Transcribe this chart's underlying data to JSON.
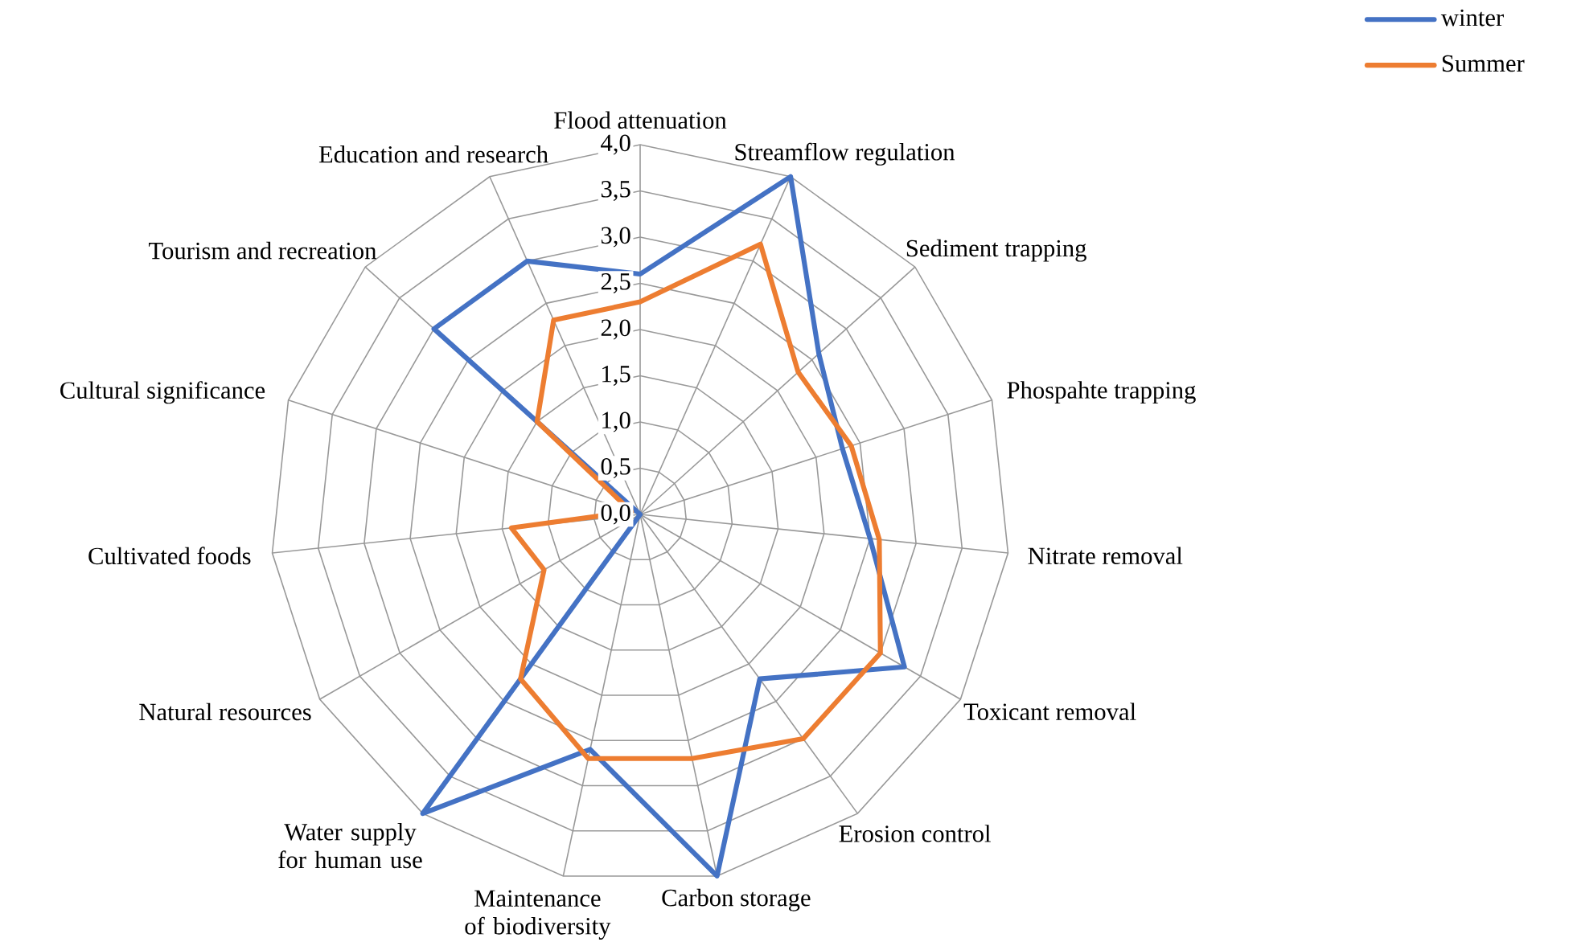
{
  "chart_data": {
    "type": "radar",
    "categories": [
      "Flood attenuation",
      "Streamflow regulation",
      "Sediment trapping",
      "Phospahte trapping",
      "Nitrate removal",
      "Toxicant removal",
      "Erosion control",
      "Carbon storage",
      "Maintenance of biodiversity",
      "Water supply for human use",
      "Natural resources",
      "Cultivated foods",
      "Cultural significance",
      "Tourism and recreation",
      "Education and research"
    ],
    "series": [
      {
        "name": "winter",
        "color": "#4472c4",
        "values": [
          2.6,
          4.0,
          2.6,
          2.3,
          2.5,
          3.3,
          2.2,
          4.0,
          2.6,
          4.0,
          0,
          0,
          0,
          3.0,
          3.0
        ]
      },
      {
        "name": "Summer",
        "color": "#ed7d31",
        "values": [
          2.3,
          3.2,
          2.3,
          2.4,
          2.6,
          3.0,
          3.0,
          2.7,
          2.7,
          2.2,
          1.2,
          1.4,
          0.1,
          1.5,
          2.3
        ]
      }
    ],
    "ylim": [
      0,
      4
    ],
    "yticks": [
      {
        "value": 0,
        "label": "0,0"
      },
      {
        "value": 0.5,
        "label": "0,5"
      },
      {
        "value": 1,
        "label": "1,0"
      },
      {
        "value": 1.5,
        "label": "1,5"
      },
      {
        "value": 2,
        "label": "2,0"
      },
      {
        "value": 2.5,
        "label": "2,5"
      },
      {
        "value": 3,
        "label": "3,0"
      },
      {
        "value": 3.5,
        "label": "3,5"
      },
      {
        "value": 4,
        "label": "4,0"
      }
    ],
    "grid": true,
    "legend": "top right",
    "marker": "none",
    "line_style": "solid"
  }
}
